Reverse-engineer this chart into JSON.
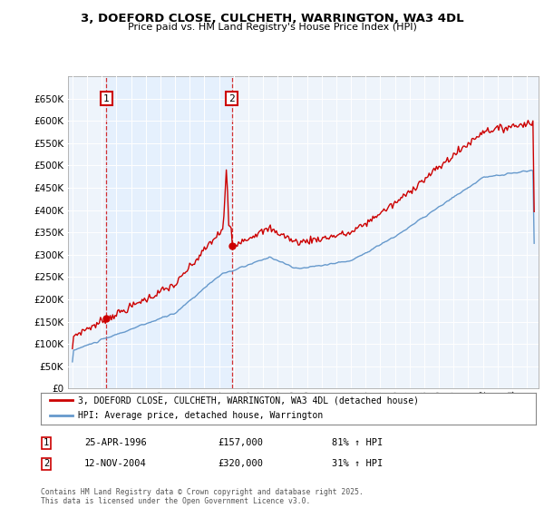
{
  "title": "3, DOEFORD CLOSE, CULCHETH, WARRINGTON, WA3 4DL",
  "subtitle": "Price paid vs. HM Land Registry's House Price Index (HPI)",
  "legend_line1": "3, DOEFORD CLOSE, CULCHETH, WARRINGTON, WA3 4DL (detached house)",
  "legend_line2": "HPI: Average price, detached house, Warrington",
  "transaction1_date": "25-APR-1996",
  "transaction1_price": "£157,000",
  "transaction1_hpi": "81% ↑ HPI",
  "transaction2_date": "12-NOV-2004",
  "transaction2_price": "£320,000",
  "transaction2_hpi": "31% ↑ HPI",
  "footer": "Contains HM Land Registry data © Crown copyright and database right 2025.\nThis data is licensed under the Open Government Licence v3.0.",
  "red_color": "#cc0000",
  "blue_color": "#6699cc",
  "fill_color": "#ddeeff",
  "background_color": "#ffffff",
  "grid_color": "#cccccc",
  "ylim": [
    0,
    700000
  ],
  "yticks": [
    0,
    50000,
    100000,
    150000,
    200000,
    250000,
    300000,
    350000,
    400000,
    450000,
    500000,
    550000,
    600000,
    650000
  ],
  "year_start": 1994,
  "year_end": 2025,
  "transaction1_year": 1996.32,
  "transaction2_year": 2004.87,
  "transaction1_price_val": 157000,
  "transaction2_price_val": 320000
}
